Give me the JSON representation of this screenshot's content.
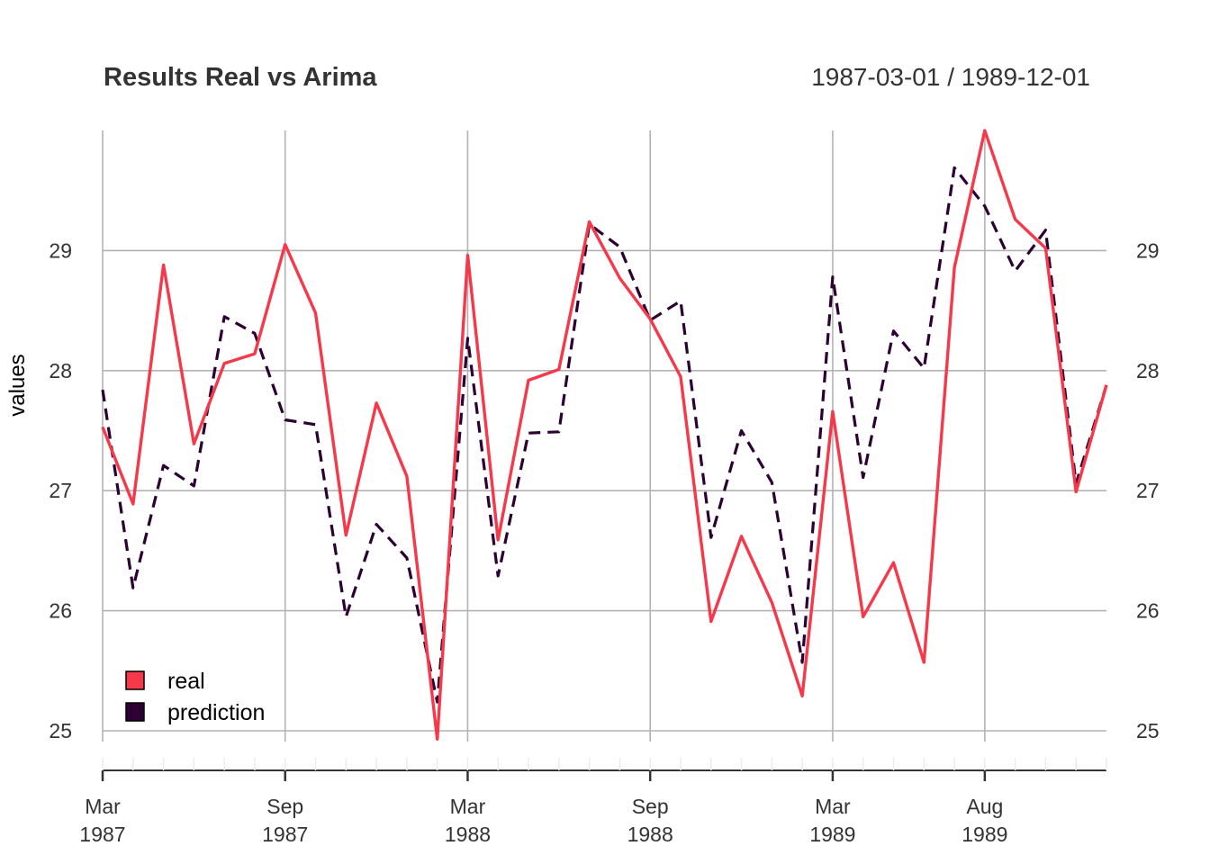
{
  "chart_data": {
    "type": "line",
    "title": "Results Real vs Arima",
    "date_range": "1987-03-01 / 1989-12-01",
    "ylabel": "values",
    "xlabel": "",
    "ylim": [
      24.9,
      30.0
    ],
    "y_ticks": [
      25,
      26,
      27,
      28,
      29
    ],
    "y_tick_labels": [
      "25",
      "26",
      "27",
      "28",
      "29"
    ],
    "x": [
      "1987-03",
      "1987-04",
      "1987-05",
      "1987-06",
      "1987-07",
      "1987-08",
      "1987-09",
      "1987-10",
      "1987-11",
      "1987-12",
      "1988-01",
      "1988-02",
      "1988-03",
      "1988-04",
      "1988-05",
      "1988-06",
      "1988-07",
      "1988-08",
      "1988-09",
      "1988-10",
      "1988-11",
      "1988-12",
      "1989-01",
      "1989-02",
      "1989-03",
      "1989-04",
      "1989-05",
      "1989-06",
      "1989-07",
      "1989-08",
      "1989-09",
      "1989-10",
      "1989-11",
      "1989-12"
    ],
    "x_ticks": [
      {
        "date": "1987-03",
        "month": "Mar",
        "year": "1987"
      },
      {
        "date": "1987-09",
        "month": "Sep",
        "year": "1987"
      },
      {
        "date": "1988-03",
        "month": "Mar",
        "year": "1988"
      },
      {
        "date": "1988-09",
        "month": "Sep",
        "year": "1988"
      },
      {
        "date": "1989-03",
        "month": "Mar",
        "year": "1989"
      },
      {
        "date": "1989-08",
        "month": "Aug",
        "year": "1989"
      }
    ],
    "series": [
      {
        "name": "real",
        "color": "#F5394B",
        "dash": "solid",
        "values": [
          27.53,
          26.89,
          28.88,
          27.39,
          28.06,
          28.14,
          29.05,
          28.48,
          26.63,
          27.73,
          27.12,
          24.93,
          28.96,
          26.59,
          27.92,
          28.01,
          29.24,
          28.77,
          28.43,
          27.95,
          25.91,
          26.62,
          26.07,
          25.29,
          27.66,
          25.95,
          26.4,
          25.57,
          28.86,
          30.0,
          29.26,
          29.02,
          26.99,
          27.88
        ]
      },
      {
        "name": "prediction",
        "color": "#2D0033",
        "dash": "dashed",
        "values": [
          27.84,
          26.19,
          27.21,
          27.04,
          28.45,
          28.31,
          27.59,
          27.55,
          25.95,
          26.72,
          26.44,
          25.24,
          28.27,
          26.29,
          27.48,
          27.49,
          29.22,
          29.03,
          28.42,
          28.58,
          26.61,
          27.5,
          27.07,
          25.57,
          28.78,
          27.11,
          28.33,
          28.02,
          29.69,
          29.37,
          28.83,
          29.17,
          27.06,
          27.88
        ]
      }
    ],
    "grid": true,
    "legend": {
      "position": "bottom-left",
      "entries": [
        "real",
        "prediction"
      ]
    }
  }
}
